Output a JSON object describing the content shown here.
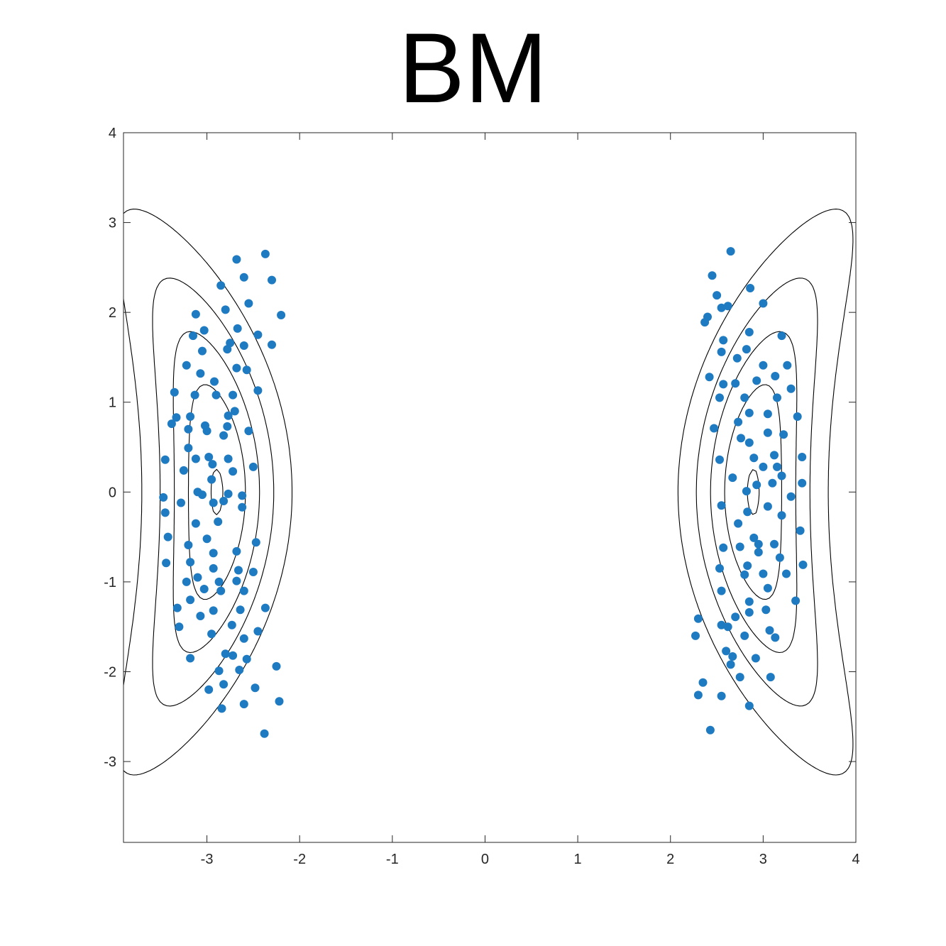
{
  "chart_data": {
    "type": "scatter",
    "title": "BM",
    "xlabel": "",
    "ylabel": "",
    "xlim": [
      -3.9,
      4
    ],
    "ylim": [
      -3.9,
      4
    ],
    "xticks": [
      -3,
      -2,
      -1,
      0,
      1,
      2,
      3,
      4
    ],
    "yticks": [
      -3,
      -2,
      -1,
      0,
      1,
      2,
      3,
      4
    ],
    "grid": false,
    "legend": "none",
    "point_color": "#1f7bc1",
    "contour_color": "#000000",
    "contour_levels": [
      0.02,
      0.04,
      0.06,
      0.08,
      0.1,
      0.12,
      0.14
    ],
    "density": {
      "description_free_params": true,
      "components": [
        {
          "cx": -3.0,
          "a": 0.45,
          "b": 1.75,
          "curve": 0.09,
          "dir": 1,
          "weight": 0.5
        },
        {
          "cx": 3.0,
          "a": 0.45,
          "b": 1.75,
          "curve": 0.09,
          "dir": -1,
          "weight": 0.5
        }
      ]
    },
    "points": [
      [
        -2.37,
        2.65
      ],
      [
        -2.68,
        2.59
      ],
      [
        -2.6,
        2.39
      ],
      [
        -2.3,
        2.36
      ],
      [
        -2.85,
        2.3
      ],
      [
        -2.55,
        2.1
      ],
      [
        -2.8,
        2.03
      ],
      [
        -3.12,
        1.98
      ],
      [
        -2.2,
        1.97
      ],
      [
        -3.03,
        1.8
      ],
      [
        -2.67,
        1.82
      ],
      [
        -3.15,
        1.74
      ],
      [
        -2.45,
        1.75
      ],
      [
        -2.75,
        1.66
      ],
      [
        -2.6,
        1.63
      ],
      [
        -2.3,
        1.64
      ],
      [
        -3.05,
        1.57
      ],
      [
        -2.78,
        1.59
      ],
      [
        -3.22,
        1.41
      ],
      [
        -2.68,
        1.38
      ],
      [
        -2.57,
        1.36
      ],
      [
        -3.07,
        1.32
      ],
      [
        -2.92,
        1.23
      ],
      [
        -3.35,
        1.11
      ],
      [
        -2.45,
        1.13
      ],
      [
        -2.9,
        1.08
      ],
      [
        -3.13,
        1.08
      ],
      [
        -2.72,
        1.08
      ],
      [
        -2.7,
        0.9
      ],
      [
        -2.77,
        0.85
      ],
      [
        -3.18,
        0.84
      ],
      [
        -3.33,
        0.83
      ],
      [
        -3.38,
        0.76
      ],
      [
        -3.02,
        0.74
      ],
      [
        -2.78,
        0.73
      ],
      [
        -3.2,
        0.7
      ],
      [
        -3.0,
        0.68
      ],
      [
        -2.55,
        0.68
      ],
      [
        -2.82,
        0.63
      ],
      [
        -3.2,
        0.49
      ],
      [
        -2.98,
        0.39
      ],
      [
        -2.77,
        0.37
      ],
      [
        -3.12,
        0.37
      ],
      [
        -3.45,
        0.36
      ],
      [
        -2.94,
        0.31
      ],
      [
        -2.5,
        0.28
      ],
      [
        -3.25,
        0.24
      ],
      [
        -2.72,
        0.23
      ],
      [
        -2.95,
        0.14
      ],
      [
        -3.1,
        0.0
      ],
      [
        -2.77,
        -0.02
      ],
      [
        -3.05,
        -0.03
      ],
      [
        -2.62,
        -0.04
      ],
      [
        -3.47,
        -0.06
      ],
      [
        -2.82,
        -0.1
      ],
      [
        -2.93,
        -0.12
      ],
      [
        -3.28,
        -0.12
      ],
      [
        -2.62,
        -0.17
      ],
      [
        -3.45,
        -0.23
      ],
      [
        -2.88,
        -0.33
      ],
      [
        -3.12,
        -0.35
      ],
      [
        -3.42,
        -0.5
      ],
      [
        -3.0,
        -0.52
      ],
      [
        -2.47,
        -0.56
      ],
      [
        -3.2,
        -0.59
      ],
      [
        -2.68,
        -0.66
      ],
      [
        -2.93,
        -0.68
      ],
      [
        -3.18,
        -0.78
      ],
      [
        -3.44,
        -0.79
      ],
      [
        -2.66,
        -0.87
      ],
      [
        -2.93,
        -0.85
      ],
      [
        -2.5,
        -0.89
      ],
      [
        -3.1,
        -0.95
      ],
      [
        -2.68,
        -0.99
      ],
      [
        -2.87,
        -1.0
      ],
      [
        -3.22,
        -1.0
      ],
      [
        -3.03,
        -1.08
      ],
      [
        -2.85,
        -1.1
      ],
      [
        -2.6,
        -1.1
      ],
      [
        -3.18,
        -1.2
      ],
      [
        -3.32,
        -1.29
      ],
      [
        -2.37,
        -1.29
      ],
      [
        -2.93,
        -1.32
      ],
      [
        -2.64,
        -1.31
      ],
      [
        -3.07,
        -1.38
      ],
      [
        -2.73,
        -1.48
      ],
      [
        -3.3,
        -1.5
      ],
      [
        -2.95,
        -1.58
      ],
      [
        -2.45,
        -1.55
      ],
      [
        -2.6,
        -1.63
      ],
      [
        -2.8,
        -1.8
      ],
      [
        -2.72,
        -1.82
      ],
      [
        -3.18,
        -1.85
      ],
      [
        -2.57,
        -1.86
      ],
      [
        -2.65,
        -1.98
      ],
      [
        -2.87,
        -1.99
      ],
      [
        -2.25,
        -1.94
      ],
      [
        -2.82,
        -2.14
      ],
      [
        -2.48,
        -2.18
      ],
      [
        -2.98,
        -2.2
      ],
      [
        -2.22,
        -2.33
      ],
      [
        -2.6,
        -2.36
      ],
      [
        -2.84,
        -2.41
      ],
      [
        -2.38,
        -2.69
      ],
      [
        2.65,
        2.68
      ],
      [
        2.45,
        2.41
      ],
      [
        2.86,
        2.27
      ],
      [
        2.5,
        2.19
      ],
      [
        3.0,
        2.1
      ],
      [
        2.55,
        2.05
      ],
      [
        2.62,
        2.07
      ],
      [
        2.4,
        1.95
      ],
      [
        2.37,
        1.89
      ],
      [
        2.85,
        1.78
      ],
      [
        3.2,
        1.74
      ],
      [
        2.57,
        1.69
      ],
      [
        2.82,
        1.59
      ],
      [
        2.55,
        1.56
      ],
      [
        2.72,
        1.49
      ],
      [
        3.0,
        1.41
      ],
      [
        3.26,
        1.41
      ],
      [
        2.42,
        1.28
      ],
      [
        3.13,
        1.29
      ],
      [
        2.93,
        1.24
      ],
      [
        2.7,
        1.21
      ],
      [
        2.57,
        1.2
      ],
      [
        3.3,
        1.15
      ],
      [
        2.8,
        1.05
      ],
      [
        2.53,
        1.05
      ],
      [
        3.15,
        1.05
      ],
      [
        2.85,
        0.88
      ],
      [
        3.05,
        0.87
      ],
      [
        3.37,
        0.84
      ],
      [
        2.73,
        0.78
      ],
      [
        2.47,
        0.71
      ],
      [
        3.05,
        0.66
      ],
      [
        3.22,
        0.64
      ],
      [
        2.76,
        0.6
      ],
      [
        2.85,
        0.55
      ],
      [
        2.9,
        0.38
      ],
      [
        3.12,
        0.41
      ],
      [
        3.42,
        0.39
      ],
      [
        2.53,
        0.36
      ],
      [
        3.0,
        0.28
      ],
      [
        3.15,
        0.28
      ],
      [
        3.2,
        0.18
      ],
      [
        2.67,
        0.16
      ],
      [
        3.1,
        0.1
      ],
      [
        3.42,
        0.1
      ],
      [
        2.93,
        0.08
      ],
      [
        2.82,
        0.01
      ],
      [
        3.3,
        -0.05
      ],
      [
        3.05,
        -0.16
      ],
      [
        2.55,
        -0.15
      ],
      [
        2.83,
        -0.22
      ],
      [
        3.2,
        -0.26
      ],
      [
        2.73,
        -0.35
      ],
      [
        3.4,
        -0.43
      ],
      [
        2.9,
        -0.51
      ],
      [
        2.95,
        -0.58
      ],
      [
        3.12,
        -0.58
      ],
      [
        2.75,
        -0.61
      ],
      [
        2.57,
        -0.62
      ],
      [
        2.95,
        -0.67
      ],
      [
        3.18,
        -0.73
      ],
      [
        2.83,
        -0.82
      ],
      [
        3.43,
        -0.81
      ],
      [
        2.53,
        -0.85
      ],
      [
        3.0,
        -0.91
      ],
      [
        2.8,
        -0.92
      ],
      [
        3.25,
        -0.91
      ],
      [
        3.05,
        -1.07
      ],
      [
        2.55,
        -1.1
      ],
      [
        2.85,
        -1.22
      ],
      [
        3.35,
        -1.21
      ],
      [
        2.85,
        -1.34
      ],
      [
        3.03,
        -1.31
      ],
      [
        2.7,
        -1.39
      ],
      [
        2.3,
        -1.41
      ],
      [
        2.55,
        -1.48
      ],
      [
        3.07,
        -1.54
      ],
      [
        2.62,
        -1.5
      ],
      [
        2.8,
        -1.6
      ],
      [
        3.13,
        -1.62
      ],
      [
        2.27,
        -1.6
      ],
      [
        2.6,
        -1.77
      ],
      [
        2.67,
        -1.83
      ],
      [
        2.92,
        -1.85
      ],
      [
        2.65,
        -1.92
      ],
      [
        3.08,
        -2.06
      ],
      [
        2.75,
        -2.06
      ],
      [
        2.35,
        -2.12
      ],
      [
        2.3,
        -2.26
      ],
      [
        2.55,
        -2.27
      ],
      [
        2.85,
        -2.38
      ],
      [
        2.43,
        -2.65
      ]
    ]
  },
  "x_tick_labels": [
    "-3",
    "-2",
    "-1",
    "0",
    "1",
    "2",
    "3",
    "4"
  ],
  "y_tick_labels": [
    "-3",
    "-2",
    "-1",
    "0",
    "1",
    "2",
    "3",
    "4"
  ]
}
